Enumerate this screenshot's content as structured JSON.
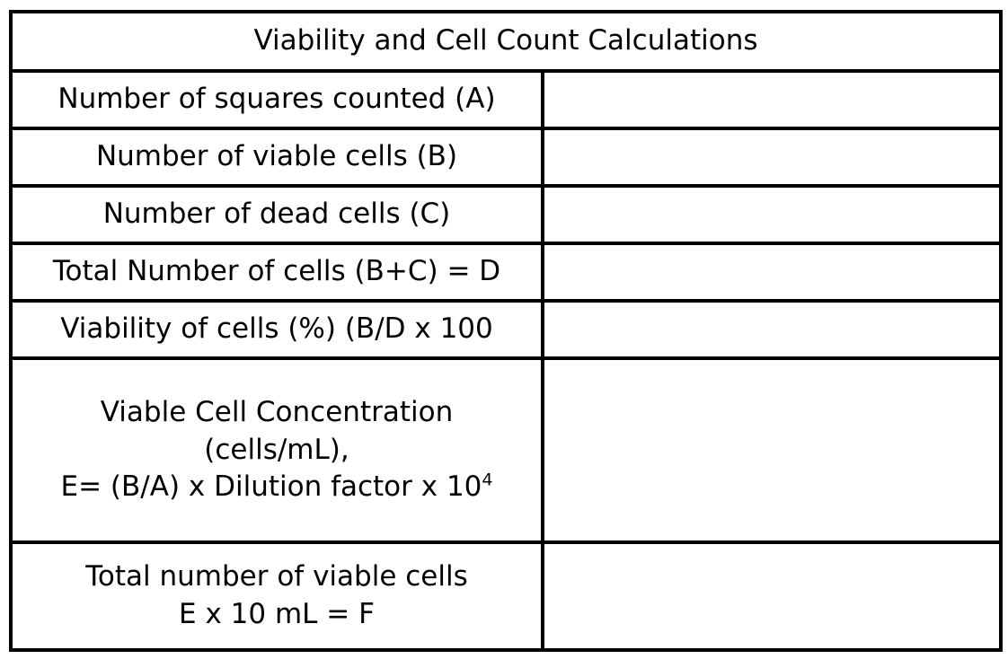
{
  "table": {
    "title": "Viability and Cell Count Calculations",
    "rows": [
      {
        "label": "Number of squares counted (A)",
        "value": ""
      },
      {
        "label": "Number of viable cells (B)",
        "value": ""
      },
      {
        "label": "Number of dead cells (C)",
        "value": ""
      },
      {
        "label": "Total Number of cells (B+C) = D",
        "value": ""
      },
      {
        "label": "Viability of cells (%) (B/D x 100",
        "value": ""
      },
      {
        "label_lines": [
          "Viable Cell Concentration",
          "(cells/mL),",
          "E= (B/A) x Dilution factor x 10"
        ],
        "label_superscript": "4",
        "value": ""
      },
      {
        "label_lines": [
          "Total number of viable cells",
          "E x 10 mL = F"
        ],
        "value": ""
      }
    ]
  }
}
